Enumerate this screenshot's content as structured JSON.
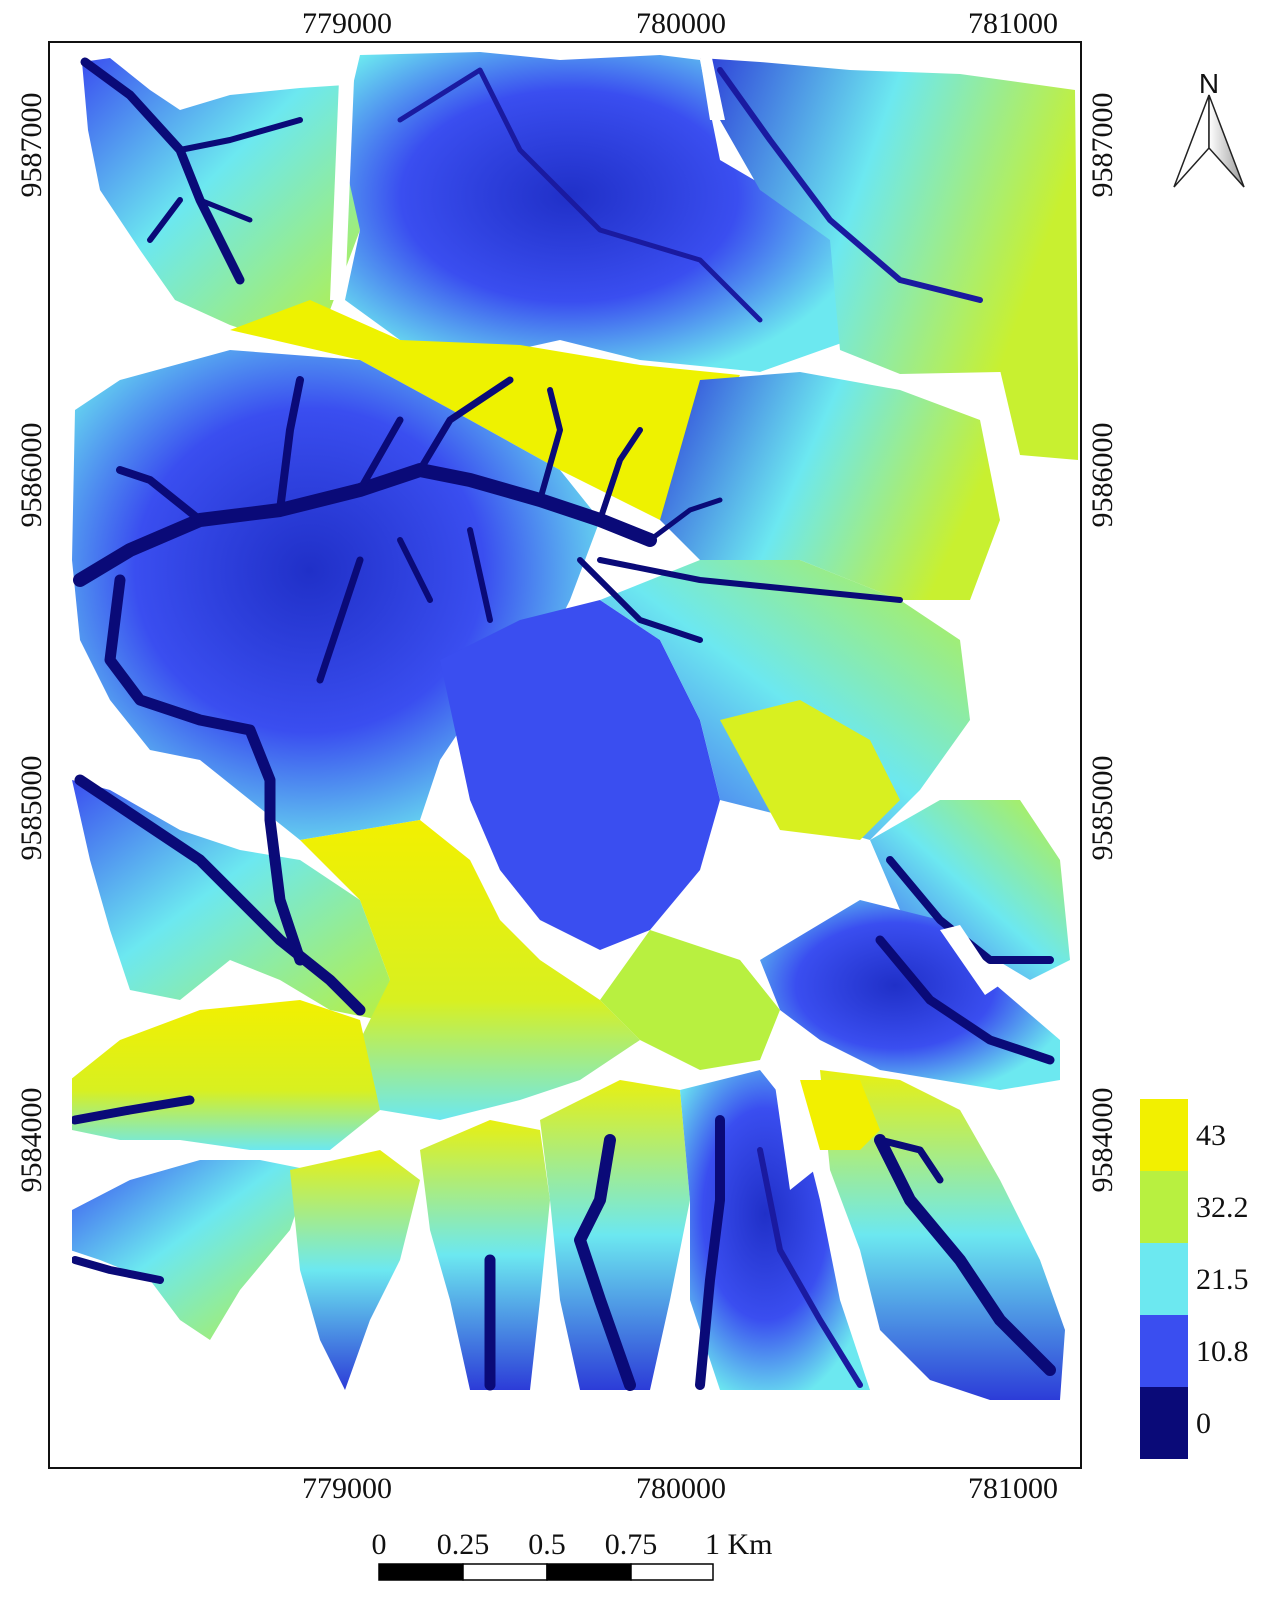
{
  "map": {
    "top_ticks": [
      "779000",
      "780000",
      "781000"
    ],
    "bottom_ticks": [
      "779000",
      "780000",
      "781000"
    ],
    "left_ticks": [
      "9587000",
      "9586000",
      "9585000",
      "9584000"
    ],
    "right_ticks": [
      "9587000",
      "9586000",
      "9585000",
      "9584000"
    ]
  },
  "north_arrow": {
    "label": "N"
  },
  "legend": {
    "classes": [
      {
        "label": "43",
        "color": "#f2f000"
      },
      {
        "label": "32.2",
        "color": "#b8f040"
      },
      {
        "label": "21.5",
        "color": "#6ce8f0"
      },
      {
        "label": "10.8",
        "color": "#3a4ef0"
      },
      {
        "label": "0",
        "color": "#0a0a78"
      }
    ]
  },
  "scale_bar": {
    "labels": [
      "0",
      "0.25",
      "0.5",
      "0.75",
      "1 Km"
    ]
  }
}
